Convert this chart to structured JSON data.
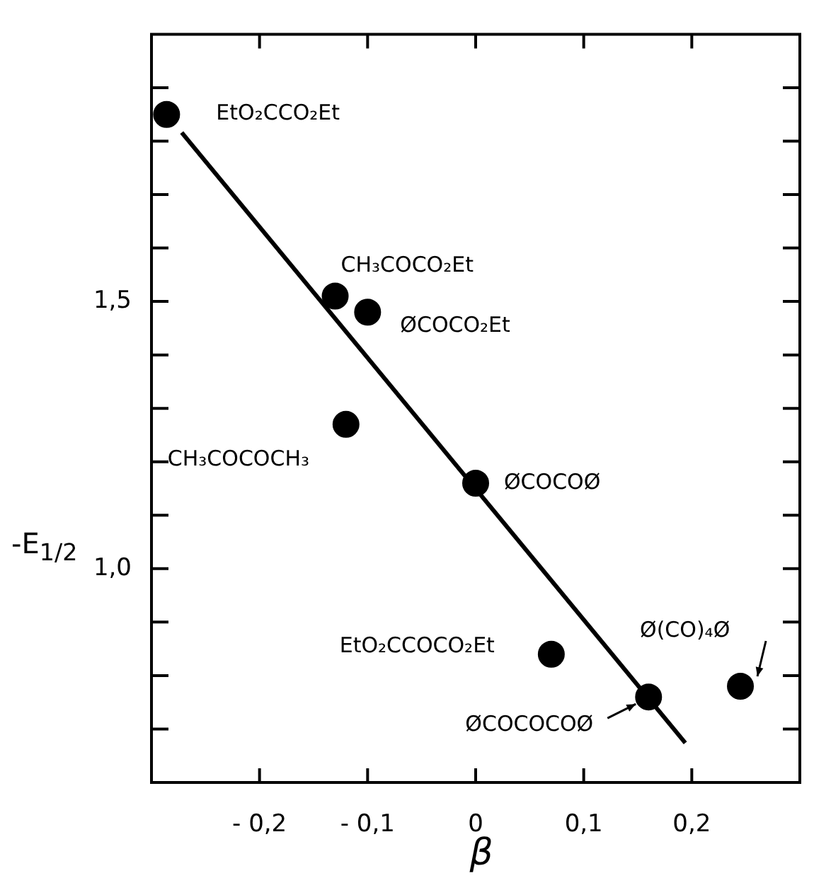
{
  "chart_data": {
    "type": "scatter",
    "xlabel": "β",
    "ylabel": "-E$_{1/2}$",
    "xlim": [
      -0.3,
      0.3
    ],
    "ylim": [
      0.6,
      2.0
    ],
    "xticks": [
      {
        "value": -0.2,
        "label": "- 0,2"
      },
      {
        "value": -0.1,
        "label": "- 0,1"
      },
      0,
      {
        "value": 0.1,
        "label": "0,1"
      },
      {
        "value": 0.2,
        "label": "0,2"
      }
    ],
    "yticks": [
      {
        "value": 0.7,
        "label": null
      },
      {
        "value": 0.8,
        "label": null
      },
      {
        "value": 0.9,
        "label": null
      },
      {
        "value": 1.0,
        "label": "1,0"
      },
      {
        "value": 1.1,
        "label": null
      },
      {
        "value": 1.2,
        "label": null
      },
      {
        "value": 1.3,
        "label": null
      },
      {
        "value": 1.4,
        "label": null
      },
      {
        "value": 1.5,
        "label": "1,5"
      },
      {
        "value": 1.6,
        "label": null
      },
      {
        "value": 1.7,
        "label": null
      },
      {
        "value": 1.8,
        "label": null
      },
      {
        "value": 1.9,
        "label": null
      }
    ],
    "grid": false,
    "legend": false,
    "series": [
      {
        "marker": "circle",
        "color": "#000000",
        "x": [
          -0.286,
          -0.13,
          -0.1,
          -0.12,
          0.0,
          0.07,
          0.16,
          0.245
        ],
        "values": [
          1.85,
          1.51,
          1.48,
          1.27,
          1.16,
          0.84,
          0.76,
          0.78
        ]
      },
      {
        "type": "line",
        "marker": "none",
        "color": "#000000",
        "x": [
          -0.272,
          0.194
        ],
        "values": [
          1.816,
          0.674
        ]
      }
    ],
    "annotations": [
      {
        "text": "EtO₂CCO₂Et",
        "x": -0.286,
        "y": 1.85
      },
      {
        "text": "CH₃COCO₂Et",
        "x": -0.13,
        "y": 1.51
      },
      {
        "text": "ØCOCO₂Et",
        "x": -0.1,
        "y": 1.48
      },
      {
        "text": "CH₃COCOCH₃",
        "x": -0.12,
        "y": 1.27
      },
      {
        "text": "ØCOCOØ",
        "x": 0.0,
        "y": 1.16
      },
      {
        "text": "EtO₂CCOCO₂Et",
        "x": 0.07,
        "y": 0.84
      },
      {
        "text": "ØCOCOCOØ",
        "x": 0.16,
        "y": 0.76
      },
      {
        "text": "Ø(CO)₄Ø",
        "x": 0.245,
        "y": 0.78
      }
    ]
  }
}
